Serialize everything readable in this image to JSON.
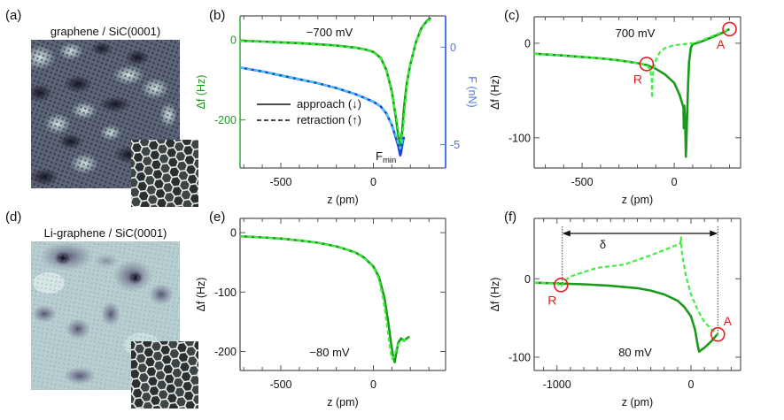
{
  "colors": {
    "approach": "#1a9a1a",
    "retraction": "#3cf03c",
    "force_approach": "#1f3fe0",
    "force_retraction": "#3ad0f0",
    "df_axis": "#1a9a1a",
    "force_axis": "#4a78e8",
    "frame": "#555555",
    "marker": "#e21f1f",
    "text": "#111111"
  },
  "images": [
    {
      "label": "(a)",
      "title": "graphene / SiC(0001)",
      "tone": "dark",
      "inset": "honeycomb"
    },
    {
      "label": "(d)",
      "title": "Li-graphene / SiC(0001)",
      "tone": "light",
      "inset": "honeycomb"
    }
  ],
  "chart_data": [
    {
      "id": "b",
      "label": "(b)",
      "type": "line",
      "annotation": "−700 mV",
      "xlabel": "z (pm)",
      "ylabel": "Δf (Hz)",
      "y2label": "F (nN)",
      "xlim": [
        -720,
        390
      ],
      "ylim": [
        -320,
        60
      ],
      "y2lim": [
        -6.2,
        1.6
      ],
      "xticks": [
        -500,
        0
      ],
      "xminor": [
        -700,
        -600,
        -400,
        -300,
        -200,
        -100,
        100,
        200,
        300
      ],
      "yticks": [
        0,
        -200
      ],
      "yticklabels": [
        "0",
        "-200"
      ],
      "y2ticks": [
        0,
        -5
      ],
      "y2ticklabels": [
        "0",
        "-5"
      ],
      "legend": {
        "position": "center-left",
        "entries": [
          {
            "label": "approach (↓)",
            "style": "solid"
          },
          {
            "label": "retraction (↑)",
            "style": "dashed"
          }
        ]
      },
      "fmin_label": {
        "main": "F",
        "sub": "min"
      },
      "series": [
        {
          "name": "approach Δf",
          "axis": "left",
          "style": "solid",
          "color_key": "approach",
          "x": [
            -720,
            -600,
            -500,
            -400,
            -300,
            -200,
            -100,
            -50,
            0,
            40,
            70,
            100,
            120,
            135,
            145,
            155,
            165,
            180,
            200,
            230,
            260,
            290,
            310
          ],
          "y": [
            -2,
            -4,
            -6,
            -8,
            -11,
            -14,
            -19,
            -23,
            -30,
            -45,
            -75,
            -130,
            -190,
            -240,
            -265,
            -230,
            -170,
            -110,
            -60,
            -5,
            30,
            48,
            55
          ]
        },
        {
          "name": "retraction Δf",
          "axis": "left",
          "style": "dashed",
          "color_key": "retraction",
          "x": [
            -720,
            -600,
            -500,
            -400,
            -300,
            -200,
            -100,
            -50,
            0,
            40,
            70,
            100,
            125,
            140,
            152,
            162,
            172,
            185,
            205,
            235,
            265,
            295,
            315
          ],
          "y": [
            -3,
            -5,
            -7,
            -9,
            -12,
            -15,
            -20,
            -24,
            -31,
            -47,
            -78,
            -135,
            -195,
            -240,
            -255,
            -220,
            -160,
            -100,
            -50,
            0,
            32,
            48,
            50
          ]
        },
        {
          "name": "approach F",
          "axis": "right",
          "style": "solid",
          "color_key": "force_approach",
          "x": [
            -720,
            -600,
            -500,
            -400,
            -300,
            -200,
            -100,
            0,
            40,
            70,
            100,
            120,
            135,
            145,
            150,
            158,
            165
          ],
          "y": [
            -1.05,
            -1.25,
            -1.45,
            -1.65,
            -1.85,
            -2.1,
            -2.4,
            -2.8,
            -3.05,
            -3.4,
            -4.0,
            -4.6,
            -5.1,
            -5.55,
            -5.4,
            -4.9,
            -4.6
          ]
        },
        {
          "name": "retraction F",
          "axis": "right",
          "style": "dashed",
          "color_key": "force_retraction",
          "x": [
            -720,
            -600,
            -500,
            -400,
            -300,
            -200,
            -100,
            0,
            40,
            70,
            100,
            120,
            135,
            145,
            152,
            160
          ],
          "y": [
            -1.05,
            -1.25,
            -1.45,
            -1.65,
            -1.85,
            -2.1,
            -2.4,
            -2.8,
            -3.05,
            -3.4,
            -4.0,
            -4.5,
            -4.95,
            -5.2,
            -5.0,
            -4.7
          ]
        }
      ]
    },
    {
      "id": "c",
      "label": "(c)",
      "type": "line",
      "annotation": "700 mV",
      "xlabel": "z (pm)",
      "ylabel": "Δf (Hz)",
      "xlim": [
        -760,
        360
      ],
      "ylim": [
        -132,
        28
      ],
      "xticks": [
        -500,
        0
      ],
      "xminor": [
        -700,
        -600,
        -400,
        -300,
        -200,
        -100,
        100,
        200,
        300
      ],
      "yticks": [
        0,
        -100
      ],
      "yticklabels": [
        "0",
        "-100"
      ],
      "markers": [
        {
          "label": "R",
          "x": -150,
          "y": -22,
          "label_pos": "below-left"
        },
        {
          "label": "A",
          "x": 300,
          "y": 15,
          "label_pos": "below-left"
        }
      ],
      "series": [
        {
          "name": "approach",
          "style": "solid",
          "color_key": "approach",
          "x": [
            -760,
            -600,
            -500,
            -400,
            -300,
            -200,
            -150,
            -100,
            -50,
            0,
            30,
            50,
            52,
            55,
            60,
            63,
            66,
            70,
            75,
            80,
            90,
            100,
            120,
            150,
            200,
            250,
            300
          ],
          "y": [
            -11,
            -13,
            -14.5,
            -16,
            -18,
            -21,
            -23,
            -27,
            -33,
            -42,
            -55,
            -68,
            -90,
            -66,
            -90,
            -120,
            -105,
            -75,
            -45,
            -20,
            -5,
            -1,
            0,
            2,
            6,
            10,
            15
          ]
        },
        {
          "name": "retraction",
          "style": "dashed",
          "color_key": "retraction",
          "x": [
            -760,
            -600,
            -500,
            -400,
            -300,
            -200,
            -150,
            -130,
            -122,
            -120,
            -118,
            -110,
            -100,
            -80,
            -50,
            0,
            50,
            100,
            150,
            200,
            250,
            300
          ],
          "y": [
            -11,
            -13,
            -14.5,
            -16,
            -18,
            -21,
            -23,
            -28,
            -40,
            -58,
            -36,
            -25,
            -18,
            -10,
            -5,
            -2,
            -1,
            0,
            3,
            7,
            11,
            15
          ]
        }
      ]
    },
    {
      "id": "e",
      "label": "(e)",
      "type": "line",
      "annotation": "−80 mV",
      "xlabel": "z (pm)",
      "ylabel": "Δf (Hz)",
      "xlim": [
        -720,
        390
      ],
      "ylim": [
        -232,
        24
      ],
      "xticks": [
        -500,
        0
      ],
      "xminor": [
        -700,
        -600,
        -400,
        -300,
        -200,
        -100,
        100,
        200,
        300
      ],
      "yticks": [
        0,
        -100,
        -200
      ],
      "yticklabels": [
        "0",
        "-100",
        "-200"
      ],
      "series": [
        {
          "name": "approach",
          "style": "solid",
          "color_key": "approach",
          "x": [
            -720,
            -600,
            -500,
            -400,
            -300,
            -200,
            -100,
            -50,
            0,
            30,
            60,
            80,
            95,
            105,
            115,
            125,
            135,
            150,
            165,
            180,
            195
          ],
          "y": [
            -6,
            -8,
            -10,
            -13,
            -17,
            -23,
            -33,
            -42,
            -57,
            -75,
            -110,
            -150,
            -185,
            -205,
            -218,
            -200,
            -185,
            -178,
            -182,
            -178,
            -175
          ]
        },
        {
          "name": "retraction",
          "style": "dashed",
          "color_key": "retraction",
          "x": [
            -720,
            -600,
            -500,
            -400,
            -300,
            -200,
            -100,
            -50,
            0,
            30,
            55,
            75,
            90,
            100,
            110,
            120,
            135,
            155,
            175,
            195
          ],
          "y": [
            -6,
            -8,
            -10,
            -13,
            -17,
            -23,
            -33,
            -43,
            -58,
            -78,
            -115,
            -160,
            -195,
            -212,
            -210,
            -200,
            -188,
            -182,
            -180,
            -177
          ]
        }
      ]
    },
    {
      "id": "f",
      "label": "(f)",
      "type": "line",
      "annotation": "80 mV",
      "xlabel": "z (pm)",
      "ylabel": "Δf (Hz)",
      "xlim": [
        -1170,
        370
      ],
      "ylim": [
        -117,
        77
      ],
      "xticks": [
        -1000,
        0
      ],
      "xminor": [
        -1100,
        -900,
        -800,
        -700,
        -600,
        -500,
        -400,
        -300,
        -200,
        -100,
        100,
        200,
        300
      ],
      "yticks": [
        0,
        -100
      ],
      "yticklabels": [
        "0",
        "-100"
      ],
      "delta": {
        "label": "δ",
        "x_from": -960,
        "x_to": 200
      },
      "markers": [
        {
          "label": "R",
          "x": -970,
          "y": -8,
          "label_pos": "below-left"
        },
        {
          "label": "A",
          "x": 200,
          "y": -71,
          "label_pos": "above-right"
        }
      ],
      "series": [
        {
          "name": "approach",
          "style": "solid",
          "color_key": "approach",
          "x": [
            -1170,
            -1000,
            -800,
            -600,
            -400,
            -300,
            -200,
            -100,
            -50,
            0,
            30,
            50,
            60,
            100,
            150,
            200
          ],
          "y": [
            -5,
            -6,
            -7,
            -9,
            -12,
            -15,
            -20,
            -28,
            -36,
            -48,
            -65,
            -85,
            -93,
            -88,
            -80,
            -70
          ]
        },
        {
          "name": "retraction",
          "style": "dashed",
          "color_key": "retraction",
          "x": [
            -1170,
            -1000,
            -970,
            -950,
            -900,
            -700,
            -500,
            -300,
            -150,
            -80,
            -75,
            -70,
            -60,
            -40,
            0,
            50,
            100,
            150,
            180,
            200
          ],
          "y": [
            -5,
            -6,
            -10,
            -4,
            3,
            14,
            18,
            30,
            40,
            45,
            53,
            38,
            25,
            5,
            -20,
            -40,
            -55,
            -64,
            -68,
            -71
          ]
        }
      ]
    }
  ]
}
